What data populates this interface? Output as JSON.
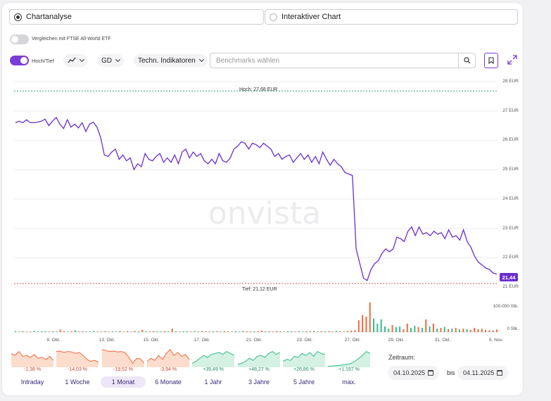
{
  "tabs": {
    "chartanalyse": "Chartanalyse",
    "interaktiv": "Interaktiver Chart"
  },
  "compare_label": "Vergleichen mit FTSE All-World ETF",
  "toolbar": {
    "hochtief": "Hoch/Tief",
    "exchange": "GD",
    "indicators": "Techn. Indikatoren",
    "benchmark_placeholder": "Benchmarks wählen"
  },
  "chart_data": {
    "type": "line",
    "watermark": "onvista",
    "y_ticks": [
      "28 EUR",
      "27 EUR",
      "26 EUR",
      "25 EUR",
      "24 EUR",
      "23 EUR",
      "22 EUR",
      "21 EUR"
    ],
    "ylim": [
      21,
      28
    ],
    "x_ticks": [
      "9. Okt.",
      "13. Okt.",
      "15. Okt.",
      "17. Okt.",
      "21. Okt.",
      "23. Okt.",
      "27. Okt.",
      "29. Okt.",
      "31. Okt.",
      "5. Nov."
    ],
    "high_label": "Hoch: 27,68 EUR",
    "low_label": "Tief: 21,12 EUR",
    "high": 27.68,
    "low": 21.12,
    "last_value": "21,44",
    "series": [
      {
        "values": [
          26.6,
          26.65,
          26.6,
          26.7,
          26.6,
          26.6,
          26.62,
          26.65,
          26.72,
          26.5,
          26.65,
          26.78,
          26.55,
          26.4,
          26.7,
          26.45,
          26.55,
          26.42,
          26.6,
          26.3,
          26.55,
          26.62,
          26.45,
          26.1,
          25.5,
          25.45,
          25.6,
          25.7,
          25.35,
          25.5,
          25.3,
          25.4,
          25.0,
          25.2,
          25.1,
          25.55,
          25.35,
          25.3,
          25.45,
          25.55,
          25.25,
          25.4,
          25.25,
          25.5,
          25.2,
          25.6,
          25.7,
          25.4,
          25.6,
          25.45,
          25.55,
          25.3,
          25.2,
          25.35,
          25.2,
          25.55,
          25.3,
          25.25,
          25.4,
          25.7,
          25.8,
          25.95,
          25.9,
          25.7,
          25.9,
          25.85,
          25.75,
          25.9,
          25.8,
          25.7,
          25.45,
          25.55,
          25.35,
          25.45,
          25.5,
          25.25,
          25.4,
          25.55,
          25.35,
          25.5,
          25.25,
          25.45,
          25.2,
          25.6,
          25.35,
          25.15,
          25.35,
          25.2,
          25.1,
          24.9,
          24.85,
          24.8,
          22.3,
          21.8,
          21.3,
          21.22,
          21.6,
          21.8,
          21.9,
          22.15,
          22.3,
          22.2,
          22.3,
          22.7,
          22.65,
          22.55,
          22.9,
          23.05,
          22.75,
          23.05,
          22.8,
          22.85,
          22.75,
          22.9,
          22.8,
          22.85,
          22.65,
          22.95,
          22.7,
          22.75,
          22.6,
          22.95,
          22.55,
          22.35,
          22.05,
          21.85,
          21.75,
          21.65,
          21.6,
          21.48,
          21.44
        ]
      }
    ],
    "volume_label": "100.000 Stk.",
    "volume_zero": "0 Stk.",
    "volume_max": 100000,
    "volumes": [
      3000,
      2000,
      3000,
      1500,
      2000,
      4000,
      2000,
      2500,
      3000,
      2000,
      3000,
      2500,
      9000,
      3000,
      2000,
      2500,
      6000,
      2000,
      3000,
      2000,
      2500,
      4000,
      2000,
      2000,
      3000,
      1500,
      2500,
      2000,
      3500,
      2000,
      3000,
      2000,
      4000,
      2500,
      8000,
      3000,
      2000,
      3500,
      2500,
      2000,
      3000,
      2500,
      12000,
      3000,
      2000,
      2500,
      3000,
      2000,
      3500,
      2000,
      4000,
      3000,
      2000,
      2500,
      3000,
      2000,
      3500,
      2500,
      2000,
      3000,
      2000,
      4000,
      3000,
      2000,
      2500,
      3000,
      5000,
      2500,
      3000,
      2000,
      3500,
      2500,
      2000,
      3000,
      2500,
      2000,
      3000,
      2000,
      2500,
      3000,
      4000,
      2000,
      3000,
      2500,
      3000,
      2000,
      4000,
      3000,
      2000,
      3500,
      5000,
      6000,
      42000,
      60000,
      55000,
      105000,
      48000,
      30000,
      45000,
      20000,
      12000,
      25000,
      18000,
      20000,
      10000,
      30000,
      15000,
      22000,
      18000,
      15000,
      45000,
      20000,
      30000,
      12000,
      15000,
      18000,
      10000,
      12000,
      15000,
      9000,
      12000,
      10000,
      8000,
      15000,
      10000,
      12000,
      8000,
      6000,
      5000,
      9000
    ]
  },
  "periods": [
    {
      "label": "Intraday",
      "change": "-1,38 %",
      "trend": "down",
      "shape": [
        0.7,
        0.6,
        0.8,
        0.55,
        0.6,
        0.5,
        0.65,
        0.45,
        0.5,
        0.4,
        0.55,
        0.35
      ]
    },
    {
      "label": "1 Woche",
      "change": "-14,03 %",
      "trend": "down",
      "shape": [
        0.8,
        0.82,
        0.75,
        0.8,
        0.78,
        0.7,
        0.75,
        0.6,
        0.4,
        0.3,
        0.35,
        0.25
      ]
    },
    {
      "label": "1 Monat",
      "change": "-19,52 %",
      "trend": "down",
      "shape": [
        0.9,
        0.85,
        0.8,
        0.82,
        0.78,
        0.8,
        0.75,
        0.5,
        0.2,
        0.45,
        0.42,
        0.2
      ]
    },
    {
      "label": "6 Monate",
      "change": "-3,94 %",
      "trend": "down",
      "shape": [
        0.3,
        0.45,
        0.35,
        0.6,
        0.4,
        0.7,
        0.9,
        0.6,
        0.75,
        0.55,
        0.65,
        0.4
      ]
    },
    {
      "label": "1 Jahr",
      "change": "+39,49 %",
      "trend": "up",
      "shape": [
        0.2,
        0.3,
        0.45,
        0.6,
        0.5,
        0.65,
        0.7,
        0.75,
        0.65,
        0.8,
        0.7,
        0.6
      ]
    },
    {
      "label": "3 Jahre",
      "change": "+48,27 %",
      "trend": "up",
      "shape": [
        0.15,
        0.2,
        0.3,
        0.45,
        0.35,
        0.55,
        0.6,
        0.5,
        0.7,
        0.8,
        0.65,
        0.75
      ]
    },
    {
      "label": "5 Jahre",
      "change": "+26,86 %",
      "trend": "up",
      "shape": [
        0.3,
        0.4,
        0.35,
        0.55,
        0.5,
        0.7,
        0.6,
        0.75,
        0.55,
        0.8,
        0.7,
        0.65
      ]
    },
    {
      "label": "max.",
      "change": "+1.197 %",
      "trend": "up",
      "shape": [
        0.05,
        0.06,
        0.08,
        0.1,
        0.12,
        0.15,
        0.2,
        0.3,
        0.45,
        0.6,
        0.8,
        0.7
      ]
    }
  ],
  "active_period": "1 Monat",
  "zeitraum": {
    "label": "Zeitraum:",
    "from": "04.10.2025",
    "bis": "bis",
    "to": "04.11.2025"
  },
  "colors": {
    "accent": "#7a3cd6",
    "line": "#6a2fd0",
    "high": "#2ea879",
    "low": "#e0574a",
    "up": "#37b98a",
    "down": "#ef6b3a"
  }
}
